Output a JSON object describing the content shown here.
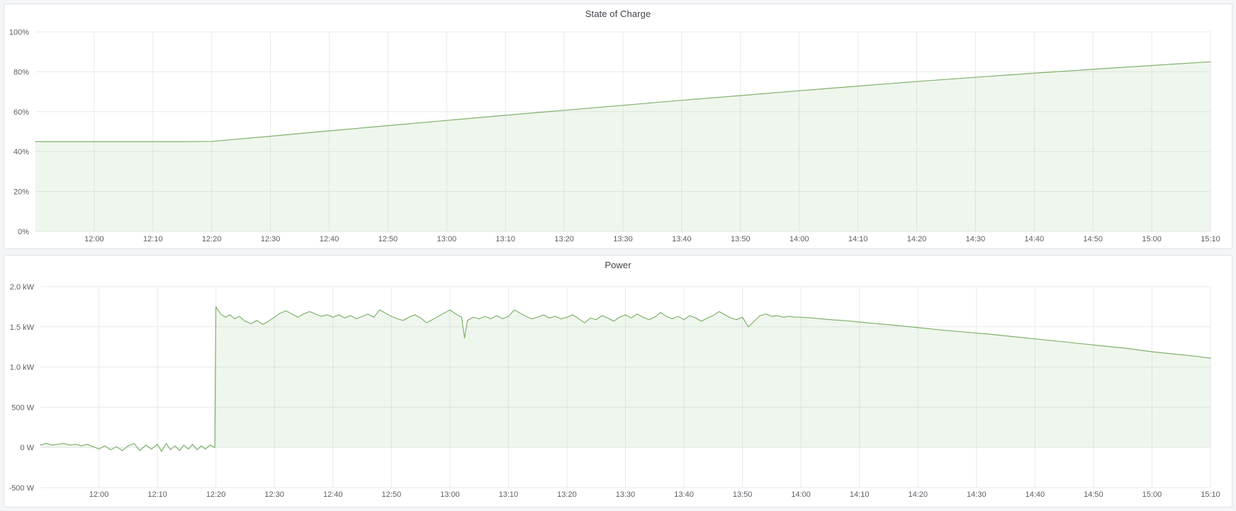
{
  "theme": {
    "page_bg": "#f4f5f6",
    "panel_bg": "#ffffff",
    "panel_border": "#dfe2e6",
    "grid_color": "#e9eaec",
    "tick_text_color": "#5c5e66",
    "title_color": "#3f434a",
    "series_line_color": "#7eb26d",
    "series_fill_color": "rgba(126,178,109,0.12)"
  },
  "chart_data": [
    {
      "type": "area",
      "title": "State of Charge",
      "xlabel": "",
      "ylabel": "",
      "grid": true,
      "legend": "none",
      "xlim_minutes": [
        710,
        910
      ],
      "ylim": [
        0,
        100
      ],
      "x_ticks": [
        "12:00",
        "12:10",
        "12:20",
        "12:30",
        "12:40",
        "12:50",
        "13:00",
        "13:10",
        "13:20",
        "13:30",
        "13:40",
        "13:50",
        "14:00",
        "14:10",
        "14:20",
        "14:30",
        "14:40",
        "14:50",
        "15:00",
        "15:10"
      ],
      "y_ticks": [
        {
          "label": "100%",
          "value": 100
        },
        {
          "label": "80%",
          "value": 80
        },
        {
          "label": "60%",
          "value": 60
        },
        {
          "label": "40%",
          "value": 40
        },
        {
          "label": "20%",
          "value": 20
        },
        {
          "label": "0%",
          "value": 0
        }
      ],
      "baseline_value": 0,
      "series": [
        {
          "name": "State of Charge",
          "unit": "%",
          "points": [
            [
              710,
              45
            ],
            [
              715,
              45
            ],
            [
              720,
              45
            ],
            [
              725,
              45
            ],
            [
              730,
              45
            ],
            [
              735,
              45
            ],
            [
              740,
              45.1
            ],
            [
              750,
              47.7
            ],
            [
              760,
              50.4
            ],
            [
              770,
              53.0
            ],
            [
              780,
              55.6
            ],
            [
              790,
              58.2
            ],
            [
              800,
              60.7
            ],
            [
              810,
              63.2
            ],
            [
              820,
              65.7
            ],
            [
              830,
              68.1
            ],
            [
              840,
              70.5
            ],
            [
              850,
              72.85
            ],
            [
              860,
              75.1
            ],
            [
              870,
              77.25
            ],
            [
              880,
              79.3
            ],
            [
              890,
              81.25
            ],
            [
              900,
              83.15
            ],
            [
              910,
              85
            ]
          ]
        }
      ]
    },
    {
      "type": "area",
      "title": "Power",
      "xlabel": "",
      "ylabel": "",
      "grid": true,
      "legend": "none",
      "xlim_minutes": [
        710,
        910
      ],
      "ylim": [
        -0.5,
        2.0
      ],
      "x_ticks": [
        "12:00",
        "12:10",
        "12:20",
        "12:30",
        "12:40",
        "12:50",
        "13:00",
        "13:10",
        "13:20",
        "13:30",
        "13:40",
        "13:50",
        "14:00",
        "14:10",
        "14:20",
        "14:30",
        "14:40",
        "14:50",
        "15:00",
        "15:10"
      ],
      "y_ticks": [
        {
          "label": "2.0 kW",
          "value": 2.0
        },
        {
          "label": "1.5 kW",
          "value": 1.5
        },
        {
          "label": "1.0 kW",
          "value": 1.0
        },
        {
          "label": "500 W",
          "value": 0.5
        },
        {
          "label": "0 W",
          "value": 0
        },
        {
          "label": "-500 W",
          "value": -0.5
        }
      ],
      "baseline_value": 0,
      "series": [
        {
          "name": "Power",
          "unit": "kW",
          "points": [
            [
              710,
              0.03
            ],
            [
              711,
              0.05
            ],
            [
              712,
              0.03
            ],
            [
              713,
              0.04
            ],
            [
              714,
              0.05
            ],
            [
              715,
              0.03
            ],
            [
              716,
              0.04
            ],
            [
              717,
              0.02
            ],
            [
              718,
              0.04
            ],
            [
              719,
              0.01
            ],
            [
              720,
              -0.02
            ],
            [
              721,
              0.02
            ],
            [
              722,
              -0.03
            ],
            [
              723,
              0.01
            ],
            [
              724,
              -0.04
            ],
            [
              725,
              0.02
            ],
            [
              726,
              0.05
            ],
            [
              727,
              -0.04
            ],
            [
              728,
              0.03
            ],
            [
              729,
              -0.02
            ],
            [
              730,
              0.04
            ],
            [
              730.7,
              -0.05
            ],
            [
              731.5,
              0.05
            ],
            [
              732.2,
              -0.03
            ],
            [
              733,
              0.02
            ],
            [
              733.8,
              -0.04
            ],
            [
              734.5,
              0.03
            ],
            [
              735.3,
              -0.02
            ],
            [
              736,
              0.04
            ],
            [
              736.8,
              -0.03
            ],
            [
              737.5,
              0.02
            ],
            [
              738.2,
              -0.02
            ],
            [
              739,
              0.03
            ],
            [
              739.8,
              0.0
            ],
            [
              740,
              1.75
            ],
            [
              740.8,
              1.66
            ],
            [
              741.6,
              1.62
            ],
            [
              742.4,
              1.65
            ],
            [
              743.2,
              1.6
            ],
            [
              744,
              1.63
            ],
            [
              745,
              1.57
            ],
            [
              746,
              1.54
            ],
            [
              747,
              1.58
            ],
            [
              748,
              1.53
            ],
            [
              749,
              1.57
            ],
            [
              750,
              1.62
            ],
            [
              751,
              1.67
            ],
            [
              752,
              1.7
            ],
            [
              753,
              1.66
            ],
            [
              754,
              1.62
            ],
            [
              755,
              1.66
            ],
            [
              756,
              1.69
            ],
            [
              757,
              1.66
            ],
            [
              758,
              1.63
            ],
            [
              759,
              1.65
            ],
            [
              760,
              1.62
            ],
            [
              761,
              1.65
            ],
            [
              762,
              1.61
            ],
            [
              763,
              1.64
            ],
            [
              764,
              1.6
            ],
            [
              765,
              1.63
            ],
            [
              766,
              1.66
            ],
            [
              767,
              1.62
            ],
            [
              768,
              1.71
            ],
            [
              769,
              1.67
            ],
            [
              770,
              1.63
            ],
            [
              771,
              1.6
            ],
            [
              772,
              1.58
            ],
            [
              773,
              1.62
            ],
            [
              774,
              1.65
            ],
            [
              775,
              1.61
            ],
            [
              776,
              1.55
            ],
            [
              777,
              1.59
            ],
            [
              778,
              1.63
            ],
            [
              779,
              1.67
            ],
            [
              780,
              1.71
            ],
            [
              781,
              1.66
            ],
            [
              782,
              1.62
            ],
            [
              782.5,
              1.36
            ],
            [
              783,
              1.58
            ],
            [
              784,
              1.62
            ],
            [
              785,
              1.6
            ],
            [
              786,
              1.63
            ],
            [
              787,
              1.6
            ],
            [
              788,
              1.64
            ],
            [
              789,
              1.6
            ],
            [
              790,
              1.63
            ],
            [
              791,
              1.71
            ],
            [
              792,
              1.67
            ],
            [
              793,
              1.63
            ],
            [
              794,
              1.6
            ],
            [
              795,
              1.62
            ],
            [
              796,
              1.65
            ],
            [
              797,
              1.61
            ],
            [
              798,
              1.63
            ],
            [
              799,
              1.6
            ],
            [
              800,
              1.62
            ],
            [
              801,
              1.65
            ],
            [
              802,
              1.6
            ],
            [
              803,
              1.55
            ],
            [
              804,
              1.61
            ],
            [
              805,
              1.59
            ],
            [
              806,
              1.64
            ],
            [
              807,
              1.61
            ],
            [
              808,
              1.57
            ],
            [
              809,
              1.62
            ],
            [
              810,
              1.65
            ],
            [
              811,
              1.61
            ],
            [
              812,
              1.66
            ],
            [
              813,
              1.62
            ],
            [
              814,
              1.59
            ],
            [
              815,
              1.62
            ],
            [
              816,
              1.68
            ],
            [
              817,
              1.63
            ],
            [
              818,
              1.6
            ],
            [
              819,
              1.63
            ],
            [
              820,
              1.59
            ],
            [
              821,
              1.64
            ],
            [
              822,
              1.61
            ],
            [
              823,
              1.57
            ],
            [
              824,
              1.61
            ],
            [
              825,
              1.64
            ],
            [
              826,
              1.69
            ],
            [
              827,
              1.65
            ],
            [
              828,
              1.61
            ],
            [
              829,
              1.59
            ],
            [
              830,
              1.62
            ],
            [
              831,
              1.5
            ],
            [
              832,
              1.57
            ],
            [
              833,
              1.64
            ],
            [
              834,
              1.66
            ],
            [
              835,
              1.63
            ],
            [
              836,
              1.64
            ],
            [
              837,
              1.62
            ],
            [
              838,
              1.63
            ],
            [
              839,
              1.62
            ],
            [
              840,
              1.62
            ],
            [
              842,
              1.61
            ],
            [
              845,
              1.59
            ],
            [
              848,
              1.575
            ],
            [
              850,
              1.56
            ],
            [
              853,
              1.54
            ],
            [
              856,
              1.52
            ],
            [
              860,
              1.49
            ],
            [
              864,
              1.46
            ],
            [
              868,
              1.435
            ],
            [
              872,
              1.41
            ],
            [
              876,
              1.38
            ],
            [
              880,
              1.35
            ],
            [
              884,
              1.32
            ],
            [
              888,
              1.29
            ],
            [
              892,
              1.26
            ],
            [
              896,
              1.23
            ],
            [
              900,
              1.19
            ],
            [
              904,
              1.16
            ],
            [
              908,
              1.13
            ],
            [
              910,
              1.11
            ]
          ]
        }
      ]
    }
  ]
}
